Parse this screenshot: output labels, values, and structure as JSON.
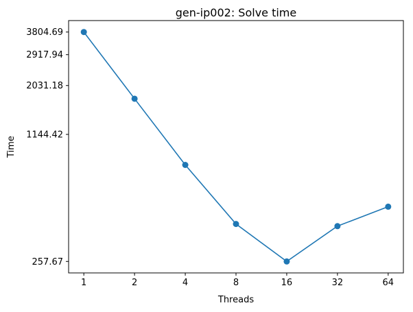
{
  "chart_data": {
    "type": "line",
    "title": "gen-ip002: Solve time",
    "xlabel": "Threads",
    "ylabel": "Time",
    "x_scale": "log2",
    "y_scale": "log",
    "x": [
      1,
      2,
      4,
      8,
      16,
      32,
      64
    ],
    "x_tick_labels": [
      "1",
      "2",
      "4",
      "8",
      "16",
      "32",
      "64"
    ],
    "y_ticks": [
      257.67,
      1144.42,
      2031.18,
      2917.94,
      3804.69
    ],
    "y_tick_labels": [
      "257.67",
      "1144.42",
      "2031.18",
      "2917.94",
      "3804.69"
    ],
    "series": [
      {
        "values": [
          3804.69,
          1740,
          800,
          400,
          257.67,
          390,
          490
        ],
        "color": "#1f77b4",
        "marker": "circle"
      }
    ],
    "grid": false,
    "legend": "none"
  }
}
